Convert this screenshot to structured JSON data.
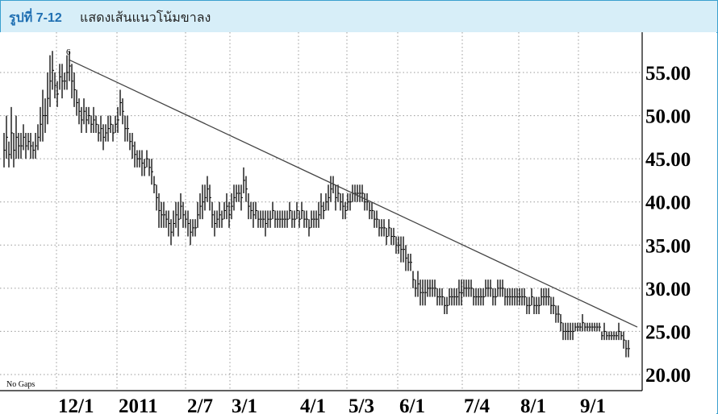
{
  "header": {
    "figure_label": "รูปที่ 7-12",
    "caption": "แสดงเส้นแนวโน้มขาลง"
  },
  "chart_data": {
    "type": "bar",
    "style": "ohlc-bar",
    "title": "",
    "note": "No Gaps",
    "marker": "6",
    "ylim": [
      20,
      57.5
    ],
    "yticks": [
      "55.00",
      "50.00",
      "45.00",
      "40.00",
      "35.00",
      "30.00",
      "25.00",
      "20.00"
    ],
    "xticks": [
      "12/1",
      "2011",
      "2/7",
      "3/1",
      "4/1",
      "5/3",
      "6/1",
      "7/4",
      "8/1",
      "9/1"
    ],
    "grid": true,
    "trendline": {
      "from": [
        85,
        56.5
      ],
      "to": [
        790,
        25.5
      ]
    },
    "colors": {
      "bars": "#000000",
      "grid": "#9a9a9a",
      "trendline": "#444444",
      "header_bg": "#d7eef8",
      "header_border": "#3aa0cf",
      "label": "#1f6fb2"
    },
    "series": [
      {
        "values": [
          [
            5,
            44,
            48
          ],
          [
            8,
            45,
            50
          ],
          [
            11,
            44,
            47
          ],
          [
            14,
            45,
            51
          ],
          [
            17,
            44,
            48
          ],
          [
            20,
            45,
            50
          ],
          [
            23,
            45,
            48
          ],
          [
            26,
            45,
            48
          ],
          [
            29,
            46,
            49
          ],
          [
            32,
            45,
            48
          ],
          [
            35,
            46,
            48
          ],
          [
            38,
            45,
            48
          ],
          [
            41,
            45,
            47
          ],
          [
            44,
            45,
            48
          ],
          [
            47,
            46,
            49
          ],
          [
            50,
            47,
            51
          ],
          [
            53,
            47,
            53
          ],
          [
            56,
            48,
            52
          ],
          [
            59,
            49,
            55
          ],
          [
            62,
            51,
            57
          ],
          [
            65,
            53,
            57.5
          ],
          [
            68,
            52,
            55
          ],
          [
            71,
            51,
            54
          ],
          [
            74,
            53,
            56
          ],
          [
            77,
            52,
            56
          ],
          [
            80,
            53,
            55
          ],
          [
            83,
            53,
            57
          ],
          [
            86,
            54,
            57.5
          ],
          [
            89,
            52,
            56
          ],
          [
            92,
            51,
            55
          ],
          [
            95,
            50,
            53
          ],
          [
            98,
            49,
            52
          ],
          [
            101,
            48,
            51
          ],
          [
            104,
            49,
            52
          ],
          [
            107,
            48,
            51
          ],
          [
            110,
            49,
            51
          ],
          [
            113,
            48,
            50
          ],
          [
            116,
            48,
            51
          ],
          [
            119,
            48,
            50
          ],
          [
            122,
            47,
            49
          ],
          [
            125,
            47,
            50
          ],
          [
            128,
            46,
            49
          ],
          [
            131,
            47,
            49
          ],
          [
            134,
            47,
            50
          ],
          [
            137,
            48,
            50
          ],
          [
            140,
            47,
            49
          ],
          [
            143,
            48,
            50
          ],
          [
            146,
            48,
            51
          ],
          [
            149,
            50,
            53
          ],
          [
            152,
            49,
            52
          ],
          [
            155,
            47,
            50
          ],
          [
            158,
            47,
            50
          ],
          [
            161,
            46,
            48
          ],
          [
            164,
            45,
            48
          ],
          [
            167,
            44,
            47
          ],
          [
            170,
            44,
            46
          ],
          [
            173,
            44,
            46
          ],
          [
            176,
            43,
            46
          ],
          [
            179,
            43,
            45
          ],
          [
            182,
            44,
            46
          ],
          [
            185,
            43,
            45
          ],
          [
            188,
            42,
            45
          ],
          [
            191,
            41,
            43
          ],
          [
            194,
            39,
            42
          ],
          [
            197,
            37,
            41
          ],
          [
            200,
            37,
            40
          ],
          [
            203,
            37,
            40
          ],
          [
            206,
            37,
            39
          ],
          [
            209,
            36,
            39
          ],
          [
            212,
            35,
            38
          ],
          [
            215,
            36,
            39
          ],
          [
            218,
            37,
            40
          ],
          [
            221,
            36,
            40
          ],
          [
            224,
            38,
            41
          ],
          [
            227,
            37,
            40
          ],
          [
            230,
            37,
            39
          ],
          [
            233,
            36,
            39
          ],
          [
            236,
            35,
            38
          ],
          [
            239,
            36,
            38
          ],
          [
            242,
            36,
            38
          ],
          [
            245,
            37,
            40
          ],
          [
            248,
            38,
            41
          ],
          [
            251,
            38,
            42
          ],
          [
            254,
            39,
            42
          ],
          [
            257,
            40,
            43
          ],
          [
            260,
            39,
            42
          ],
          [
            263,
            37,
            40
          ],
          [
            266,
            36,
            39
          ],
          [
            269,
            37,
            39
          ],
          [
            272,
            37,
            40
          ],
          [
            275,
            37,
            39
          ],
          [
            278,
            38,
            40
          ],
          [
            281,
            38,
            41
          ],
          [
            284,
            37,
            40
          ],
          [
            287,
            38,
            41
          ],
          [
            290,
            39,
            42
          ],
          [
            293,
            40,
            42
          ],
          [
            296,
            40,
            42
          ],
          [
            299,
            39,
            42
          ],
          [
            302,
            41,
            44
          ],
          [
            305,
            40,
            43
          ],
          [
            308,
            38,
            41
          ],
          [
            311,
            38,
            40
          ],
          [
            314,
            37,
            40
          ],
          [
            317,
            38,
            40
          ],
          [
            320,
            37,
            39
          ],
          [
            323,
            37,
            39
          ],
          [
            326,
            37,
            39
          ],
          [
            329,
            36,
            39
          ],
          [
            332,
            37,
            39
          ],
          [
            335,
            37,
            39
          ],
          [
            338,
            38,
            40
          ],
          [
            341,
            37,
            39
          ],
          [
            344,
            37,
            39
          ],
          [
            347,
            37,
            39
          ],
          [
            350,
            37,
            39
          ],
          [
            353,
            37,
            39
          ],
          [
            356,
            37,
            39
          ],
          [
            359,
            38,
            40
          ],
          [
            362,
            37,
            39
          ],
          [
            365,
            37,
            39
          ],
          [
            368,
            38,
            40
          ],
          [
            371,
            37,
            39
          ],
          [
            374,
            38,
            40
          ],
          [
            377,
            37,
            39
          ],
          [
            380,
            37,
            39
          ],
          [
            383,
            36,
            38
          ],
          [
            386,
            37,
            39
          ],
          [
            389,
            37,
            39
          ],
          [
            392,
            37,
            39
          ],
          [
            395,
            37,
            40
          ],
          [
            398,
            38,
            41
          ],
          [
            401,
            38,
            40
          ],
          [
            404,
            39,
            41
          ],
          [
            407,
            39,
            42
          ],
          [
            410,
            40,
            43
          ],
          [
            413,
            41,
            43
          ],
          [
            416,
            39,
            42
          ],
          [
            419,
            40,
            42
          ],
          [
            422,
            39,
            41
          ],
          [
            425,
            38,
            41
          ],
          [
            428,
            38,
            40
          ],
          [
            431,
            39,
            41
          ],
          [
            434,
            39,
            41
          ],
          [
            437,
            40,
            42
          ],
          [
            440,
            40,
            42
          ],
          [
            443,
            40,
            42
          ],
          [
            446,
            40,
            42
          ],
          [
            449,
            40,
            42
          ],
          [
            452,
            39,
            41
          ],
          [
            455,
            39,
            41
          ],
          [
            458,
            38,
            40
          ],
          [
            461,
            38,
            40
          ],
          [
            464,
            37,
            39
          ],
          [
            467,
            37,
            39
          ],
          [
            470,
            36,
            38
          ],
          [
            473,
            36,
            38
          ],
          [
            476,
            36,
            38
          ],
          [
            479,
            35,
            37
          ],
          [
            482,
            36,
            38
          ],
          [
            485,
            35,
            37
          ],
          [
            488,
            35,
            37
          ],
          [
            491,
            34,
            36
          ],
          [
            494,
            34,
            36
          ],
          [
            497,
            33,
            36
          ],
          [
            500,
            33,
            36
          ],
          [
            503,
            32,
            35
          ],
          [
            506,
            32,
            34
          ],
          [
            509,
            32,
            34
          ],
          [
            512,
            30,
            32
          ],
          [
            515,
            29,
            31
          ],
          [
            518,
            29,
            32
          ],
          [
            521,
            28,
            31
          ],
          [
            524,
            28,
            31
          ],
          [
            527,
            28,
            31
          ],
          [
            530,
            29,
            31
          ],
          [
            533,
            29,
            31
          ],
          [
            536,
            29,
            31
          ],
          [
            539,
            29,
            31
          ],
          [
            542,
            28,
            30
          ],
          [
            545,
            28,
            30
          ],
          [
            548,
            28,
            30
          ],
          [
            551,
            27,
            29
          ],
          [
            554,
            27,
            29
          ],
          [
            557,
            28,
            30
          ],
          [
            560,
            28,
            30
          ],
          [
            563,
            28,
            30
          ],
          [
            566,
            28,
            30
          ],
          [
            569,
            28,
            31
          ],
          [
            572,
            28,
            31
          ],
          [
            575,
            29,
            31
          ],
          [
            578,
            29,
            31
          ],
          [
            581,
            29,
            31
          ],
          [
            584,
            29,
            31
          ],
          [
            587,
            28,
            30
          ],
          [
            590,
            28,
            30
          ],
          [
            593,
            28,
            30
          ],
          [
            596,
            28,
            30
          ],
          [
            599,
            28,
            30
          ],
          [
            602,
            29,
            31
          ],
          [
            605,
            29,
            31
          ],
          [
            608,
            29,
            31
          ],
          [
            611,
            28,
            30
          ],
          [
            614,
            28,
            30
          ],
          [
            617,
            29,
            31
          ],
          [
            620,
            29,
            31
          ],
          [
            623,
            29,
            31
          ],
          [
            626,
            28,
            30
          ],
          [
            629,
            28,
            30
          ],
          [
            632,
            28,
            30
          ],
          [
            635,
            28,
            30
          ],
          [
            638,
            28,
            30
          ],
          [
            641,
            28,
            30
          ],
          [
            644,
            28,
            30
          ],
          [
            647,
            28,
            30
          ],
          [
            650,
            28,
            30
          ],
          [
            653,
            27,
            29
          ],
          [
            656,
            27,
            29
          ],
          [
            659,
            28,
            30
          ],
          [
            662,
            27,
            29
          ],
          [
            665,
            27,
            29
          ],
          [
            668,
            27,
            29
          ],
          [
            671,
            28,
            30
          ],
          [
            674,
            28,
            30
          ],
          [
            677,
            28,
            30
          ],
          [
            680,
            28,
            30
          ],
          [
            683,
            27,
            29
          ],
          [
            686,
            27,
            29
          ],
          [
            689,
            26,
            28
          ],
          [
            692,
            26,
            28
          ],
          [
            695,
            25,
            27
          ],
          [
            698,
            24,
            26
          ],
          [
            701,
            24,
            26
          ],
          [
            704,
            24,
            26
          ],
          [
            707,
            24,
            26
          ],
          [
            710,
            24,
            26
          ],
          [
            713,
            25,
            26
          ],
          [
            716,
            25,
            26
          ],
          [
            719,
            25,
            26
          ],
          [
            722,
            25,
            27
          ],
          [
            725,
            25,
            26
          ],
          [
            728,
            25,
            26
          ],
          [
            731,
            25,
            26
          ],
          [
            734,
            25,
            26
          ],
          [
            737,
            25,
            26
          ],
          [
            740,
            25,
            26
          ],
          [
            743,
            25,
            26
          ],
          [
            746,
            24,
            25
          ],
          [
            749,
            24,
            26
          ],
          [
            752,
            24,
            25
          ],
          [
            755,
            24,
            25
          ],
          [
            758,
            24,
            25
          ],
          [
            761,
            24,
            25
          ],
          [
            764,
            24,
            25
          ],
          [
            767,
            24,
            26
          ],
          [
            770,
            24,
            25
          ],
          [
            773,
            23,
            25
          ],
          [
            776,
            22,
            24
          ],
          [
            779,
            22,
            24
          ]
        ]
      }
    ]
  }
}
